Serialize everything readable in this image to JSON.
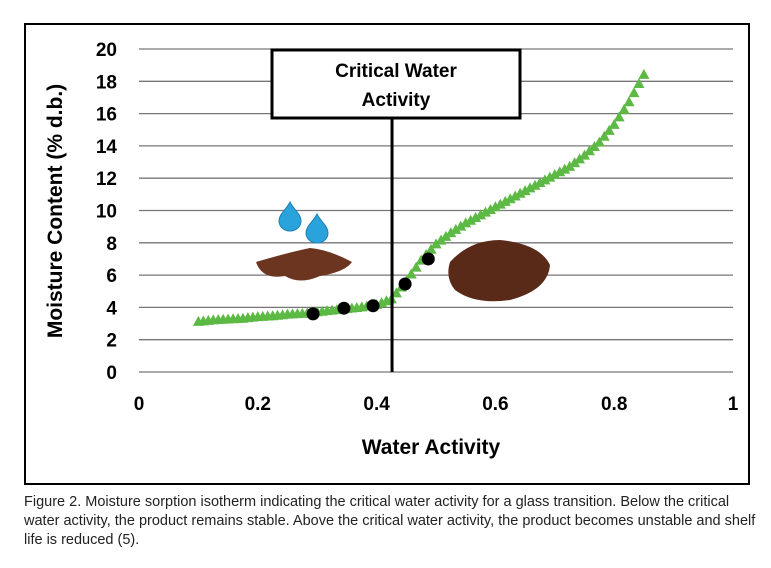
{
  "chart_data": {
    "type": "scatter",
    "title": "",
    "xlabel": "Water Activity",
    "ylabel": "Moisture Content (% d.b.)",
    "xlim": [
      0,
      1
    ],
    "ylim": [
      0,
      20
    ],
    "xticks": [
      "0",
      "0.2",
      "0.4",
      "0.6",
      "0.8",
      "1"
    ],
    "yticks": [
      "0",
      "2",
      "4",
      "6",
      "8",
      "10",
      "12",
      "14",
      "16",
      "18",
      "20"
    ],
    "grid": "horizontal",
    "series": [
      {
        "marker": "triangle",
        "color": "#5cb944",
        "x": [
          0.1,
          0.125,
          0.15,
          0.175,
          0.2,
          0.225,
          0.25,
          0.275,
          0.3,
          0.325,
          0.35,
          0.375,
          0.4,
          0.425,
          0.45,
          0.475,
          0.5,
          0.525,
          0.55,
          0.575,
          0.6,
          0.625,
          0.65,
          0.675,
          0.7,
          0.725,
          0.75,
          0.775,
          0.8,
          0.825,
          0.85
        ],
        "y": [
          3.1,
          3.2,
          3.25,
          3.3,
          3.4,
          3.45,
          3.55,
          3.6,
          3.7,
          3.8,
          3.9,
          4.0,
          4.15,
          4.5,
          5.6,
          6.9,
          7.9,
          8.6,
          9.2,
          9.7,
          10.2,
          10.7,
          11.2,
          11.7,
          12.2,
          12.7,
          13.4,
          14.2,
          15.3,
          16.7,
          18.4
        ]
      },
      {
        "marker": "circle",
        "color": "#000000",
        "x": [
          0.293,
          0.345,
          0.394,
          0.448,
          0.487
        ],
        "y": [
          3.6,
          3.95,
          4.1,
          5.45,
          7.0
        ]
      }
    ],
    "annotations": {
      "critical_line_x": 0.426,
      "box_lines": [
        "Critical Water",
        "Activity"
      ]
    }
  },
  "caption": "Figure 2. Moisture sorption isotherm indicating the critical water activity for a glass transition. Below the critical water activity, the product remains stable. Above the critical water activity, the product becomes unstable and shelf life is reduced (5).",
  "colors": {
    "drop": "#2aa3dd",
    "powder": "#6b3520",
    "granules": "#5a2a18"
  }
}
